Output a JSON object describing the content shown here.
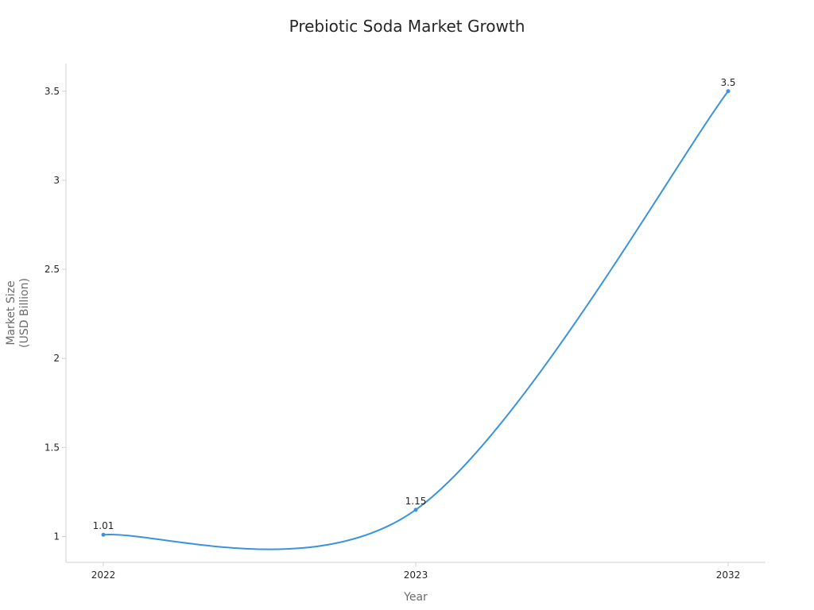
{
  "chart_data": {
    "type": "line",
    "title": "Prebiotic Soda Market Growth",
    "xlabel": "Year",
    "ylabel": [
      "Market Size",
      "(USD Billion)"
    ],
    "categories": [
      "2022",
      "2023",
      "2032"
    ],
    "series": [
      {
        "values": [
          1.01,
          1.15,
          3.5
        ],
        "data_labels": [
          "1.01",
          "1.15",
          "3.5"
        ]
      }
    ],
    "yticks": [
      1,
      1.5,
      2,
      2.5,
      3,
      3.5
    ],
    "ytick_labels": [
      "1",
      "1.5",
      "2",
      "2.5",
      "3",
      "3.5"
    ],
    "ylim": [
      0.855,
      3.655
    ],
    "grid": false,
    "line_color": "#3a93dd",
    "axis_color": "#d0d0d0"
  }
}
